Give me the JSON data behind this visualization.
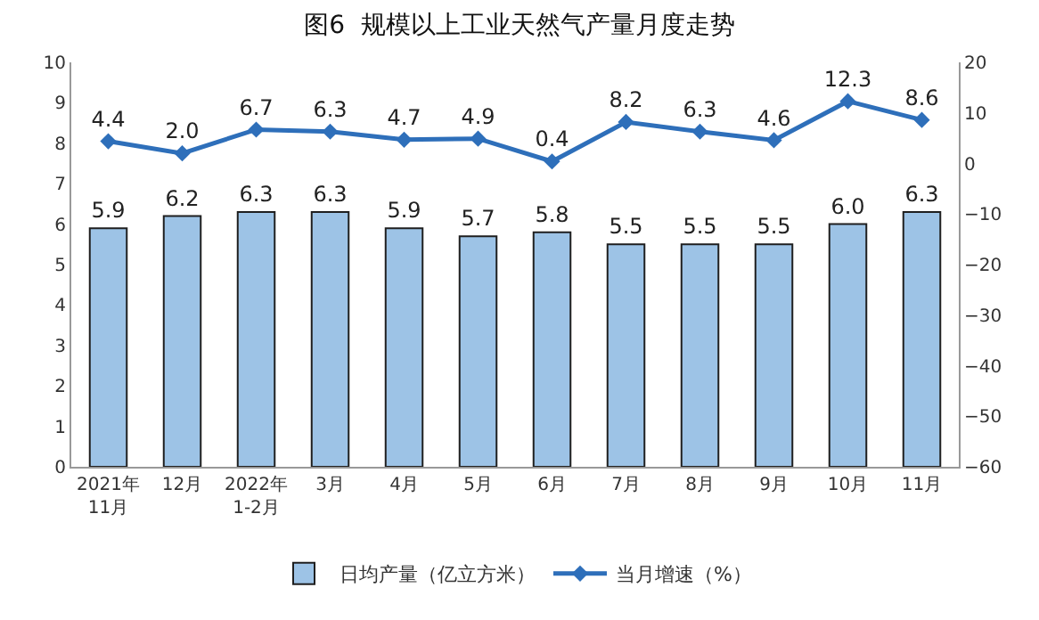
{
  "chart_data": {
    "type": "bar",
    "title": "图6  规模以上工业天然气产量月度走势",
    "categories": [
      "2021年\n11月",
      "12月",
      "2022年\n1-2月",
      "3月",
      "4月",
      "5月",
      "6月",
      "7月",
      "8月",
      "9月",
      "10月",
      "11月"
    ],
    "series": [
      {
        "name": "日均产量（亿立方米）",
        "color": "#9dc3e6",
        "values": [
          5.9,
          6.2,
          6.3,
          6.3,
          5.9,
          5.7,
          5.8,
          5.5,
          5.5,
          5.5,
          6.0,
          6.3
        ],
        "value_labels": [
          "5.9",
          "6.2",
          "6.3",
          "6.3",
          "5.9",
          "5.7",
          "5.8",
          "5.5",
          "5.5",
          "5.5",
          "6.0",
          "6.3"
        ]
      },
      {
        "name": "当月增速（%）",
        "type": "line",
        "axis": "y2",
        "color": "#2e6fba",
        "marker": "diamond",
        "values": [
          4.4,
          2.0,
          6.7,
          6.3,
          4.7,
          4.9,
          0.4,
          8.2,
          6.3,
          4.6,
          12.3,
          8.6
        ],
        "value_labels": [
          "4.4",
          "2.0",
          "6.7",
          "6.3",
          "4.7",
          "4.9",
          "0.4",
          "8.2",
          "6.3",
          "4.6",
          "12.3",
          "8.6"
        ]
      }
    ],
    "ylim": [
      0,
      10
    ],
    "yticks": [
      0,
      1,
      2,
      3,
      4,
      5,
      6,
      7,
      8,
      9,
      10
    ],
    "y2lim": [
      -60,
      20
    ],
    "y2ticks": [
      -60,
      -50,
      -40,
      -30,
      -20,
      -10,
      0,
      10,
      20
    ],
    "legend": "bottom"
  }
}
